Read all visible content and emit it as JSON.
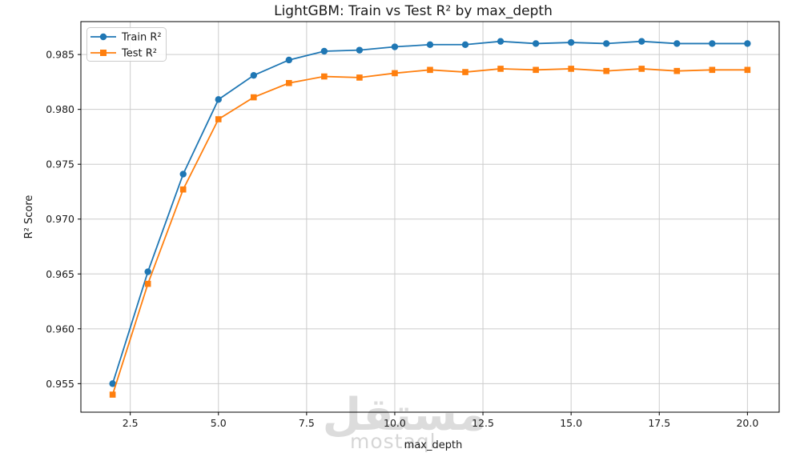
{
  "figure": {
    "title": "LightGBM: Train vs Test R² by max_depth",
    "xlabel": "max_depth",
    "ylabel": "R² Score"
  },
  "legend": {
    "items": [
      {
        "label": "Train R²",
        "color": "#1f77b4",
        "marker": "circle"
      },
      {
        "label": "Test R²",
        "color": "#ff7f0e",
        "marker": "square"
      }
    ]
  },
  "watermark": {
    "arabic": "مستقل",
    "latin": "mostaql"
  },
  "chart_data": {
    "type": "line",
    "title": "LightGBM: Train vs Test R² by max_depth",
    "xlabel": "max_depth",
    "ylabel": "R² Score",
    "x": [
      2,
      3,
      4,
      5,
      6,
      7,
      8,
      9,
      10,
      11,
      12,
      13,
      14,
      15,
      16,
      17,
      18,
      19,
      20
    ],
    "series": [
      {
        "name": "Train R²",
        "color": "#1f77b4",
        "marker": "circle",
        "values": [
          0.955,
          0.9652,
          0.9741,
          0.9809,
          0.9831,
          0.9845,
          0.9853,
          0.9854,
          0.9857,
          0.9859,
          0.9859,
          0.9862,
          0.986,
          0.9861,
          0.986,
          0.9862,
          0.986,
          0.986,
          0.986
        ]
      },
      {
        "name": "Test R²",
        "color": "#ff7f0e",
        "marker": "square",
        "values": [
          0.954,
          0.9641,
          0.9727,
          0.9791,
          0.9811,
          0.9824,
          0.983,
          0.9829,
          0.9833,
          0.9836,
          0.9834,
          0.9837,
          0.9836,
          0.9837,
          0.9835,
          0.9837,
          0.9835,
          0.9836,
          0.9836
        ]
      }
    ],
    "xlim": [
      1.1,
      20.9
    ],
    "ylim": [
      0.9524,
      0.988
    ],
    "xtick_labels": [
      "2.5",
      "5.0",
      "7.5",
      "10.0",
      "12.5",
      "15.0",
      "17.5",
      "20.0"
    ],
    "ytick_labels": [
      "0.955",
      "0.960",
      "0.965",
      "0.970",
      "0.975",
      "0.980",
      "0.985"
    ],
    "grid": true,
    "legend_position": "upper left",
    "colors": {
      "grid": "#cccccc",
      "spine": "#000000",
      "text": "#1a1a1a",
      "watermark": "#dcdcdc"
    }
  }
}
